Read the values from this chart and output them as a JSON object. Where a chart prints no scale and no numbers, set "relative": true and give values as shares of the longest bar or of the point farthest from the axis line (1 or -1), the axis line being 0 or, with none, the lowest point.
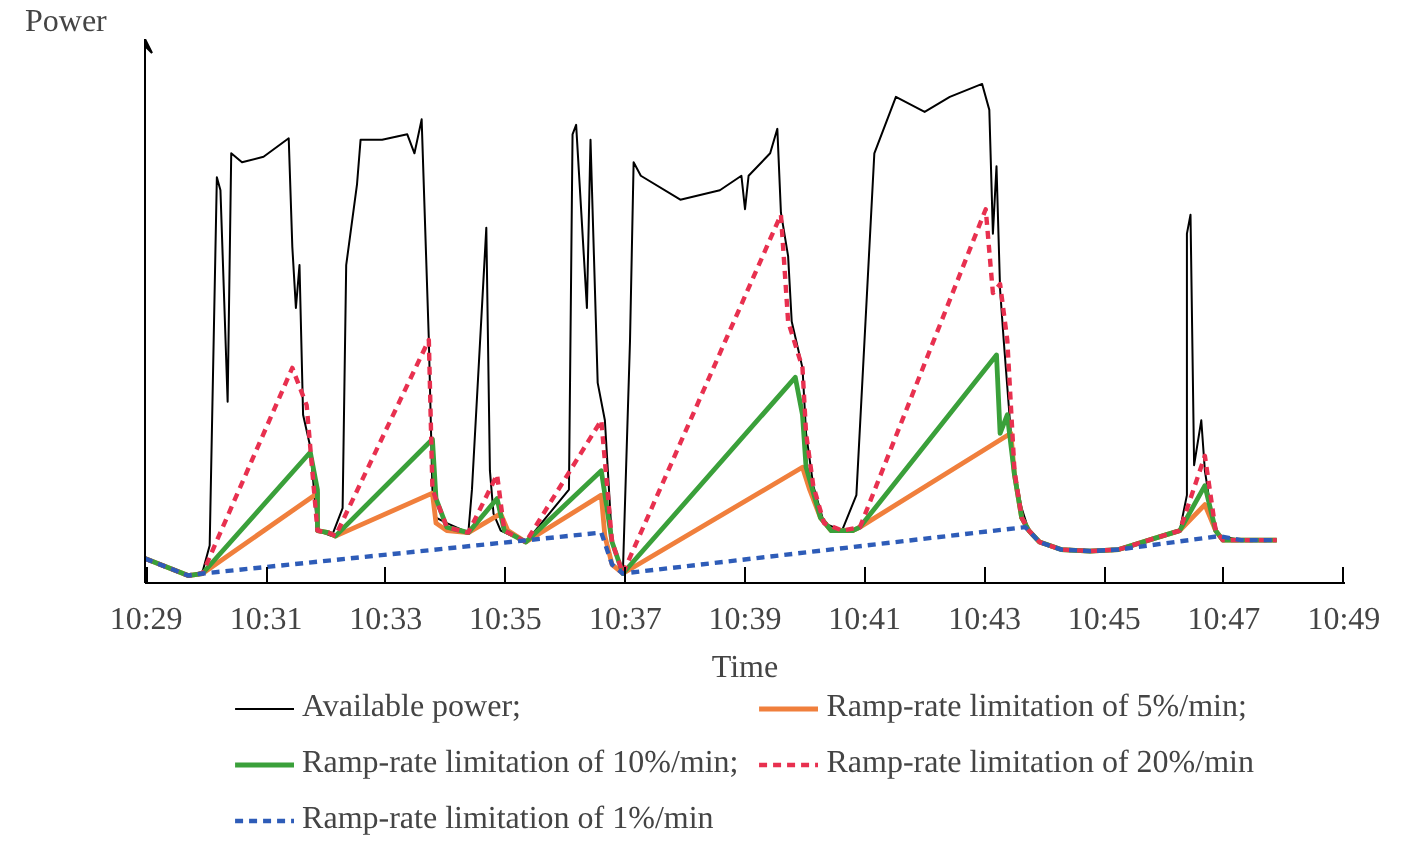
{
  "chart_data": {
    "type": "line",
    "relative": true,
    "ylabel": "Power",
    "xlabel": "Time",
    "legend": "bottom",
    "xlim": [
      10.483,
      10.817
    ],
    "xticks": [
      {
        "value": 10.4833,
        "label": "10:29"
      },
      {
        "value": 10.5167,
        "label": "10:31"
      },
      {
        "value": 10.55,
        "label": "10:33"
      },
      {
        "value": 10.5833,
        "label": "10:35"
      },
      {
        "value": 10.6167,
        "label": "10:37"
      },
      {
        "value": 10.65,
        "label": "10:39"
      },
      {
        "value": 10.6833,
        "label": "10:41"
      },
      {
        "value": 10.7167,
        "label": "10:43"
      },
      {
        "value": 10.75,
        "label": "10:45"
      },
      {
        "value": 10.7833,
        "label": "10:47"
      },
      {
        "value": 10.8167,
        "label": "10:49"
      }
    ],
    "series": [
      {
        "name": "Available power;",
        "color": "#000000",
        "line_style": "solid",
        "x": [
          10.483,
          10.495,
          10.499,
          10.501,
          10.503,
          10.504,
          10.506,
          10.507,
          10.51,
          10.516,
          10.523,
          10.524,
          10.525,
          10.526,
          10.527,
          10.529,
          10.531,
          10.535,
          10.538,
          10.539,
          10.542,
          10.543,
          10.549,
          10.556,
          10.558,
          10.56,
          10.562,
          10.563,
          10.564,
          10.567,
          10.573,
          10.574,
          10.578,
          10.579,
          10.58,
          10.582,
          10.589,
          10.601,
          10.602,
          10.603,
          10.606,
          10.607,
          10.609,
          10.611,
          10.613,
          10.616,
          10.618,
          10.619,
          10.621,
          10.632,
          10.643,
          10.649,
          10.65,
          10.651,
          10.657,
          10.659,
          10.66,
          10.662,
          10.663,
          10.666,
          10.667,
          10.669,
          10.672,
          10.677,
          10.681,
          10.686,
          10.692,
          10.7,
          10.707,
          10.716,
          10.718,
          10.719,
          10.72,
          10.721,
          10.722,
          10.724,
          10.725,
          10.727,
          10.729,
          10.732,
          10.738,
          10.746,
          10.754,
          10.766,
          10.771,
          10.773,
          10.773,
          10.774,
          10.775,
          10.777,
          10.778,
          10.78,
          10.782,
          10.788,
          10.798
        ],
        "values": [
          0.049,
          0.015,
          0.022,
          0.075,
          0.813,
          0.787,
          0.363,
          0.861,
          0.843,
          0.854,
          0.891,
          0.674,
          0.551,
          0.637,
          0.337,
          0.273,
          0.105,
          0.094,
          0.15,
          0.637,
          0.798,
          0.888,
          0.888,
          0.899,
          0.861,
          0.929,
          0.487,
          0.187,
          0.131,
          0.12,
          0.101,
          0.187,
          0.712,
          0.225,
          0.139,
          0.105,
          0.082,
          0.187,
          0.899,
          0.918,
          0.551,
          0.888,
          0.401,
          0.326,
          0.082,
          0.019,
          0.487,
          0.843,
          0.816,
          0.768,
          0.787,
          0.816,
          0.749,
          0.816,
          0.861,
          0.91,
          0.742,
          0.655,
          0.524,
          0.431,
          0.3,
          0.195,
          0.12,
          0.105,
          0.176,
          0.861,
          0.974,
          0.944,
          0.974,
          1.0,
          0.948,
          0.7,
          0.835,
          0.588,
          0.487,
          0.3,
          0.225,
          0.15,
          0.105,
          0.082,
          0.067,
          0.064,
          0.067,
          0.094,
          0.105,
          0.176,
          0.7,
          0.738,
          0.236,
          0.326,
          0.225,
          0.131,
          0.094,
          0.086,
          0.086
        ]
      },
      {
        "name": "Ramp-rate limitation of 5%/min;",
        "color": "#f07f3c",
        "line_style": "solid",
        "x": [
          10.483,
          10.495,
          10.499,
          10.531,
          10.531,
          10.534,
          10.536,
          10.563,
          10.564,
          10.567,
          10.573,
          10.582,
          10.584,
          10.589,
          10.61,
          10.611,
          10.613,
          10.616,
          10.666,
          10.668,
          10.671,
          10.674,
          10.68,
          10.682,
          10.724,
          10.725,
          10.727,
          10.729,
          10.732,
          10.738,
          10.746,
          10.754,
          10.766,
          10.771,
          10.778,
          10.781,
          10.783,
          10.798
        ],
        "values": [
          0.049,
          0.015,
          0.019,
          0.18,
          0.105,
          0.101,
          0.094,
          0.18,
          0.12,
          0.105,
          0.101,
          0.139,
          0.105,
          0.082,
          0.176,
          0.094,
          0.037,
          0.019,
          0.232,
          0.187,
          0.131,
          0.105,
          0.105,
          0.112,
          0.3,
          0.217,
          0.131,
          0.105,
          0.082,
          0.067,
          0.064,
          0.067,
          0.094,
          0.105,
          0.157,
          0.105,
          0.086,
          0.086
        ]
      },
      {
        "name": "Ramp-rate limitation of 10%/min;",
        "color": "#3aa03a",
        "line_style": "solid",
        "x": [
          10.483,
          10.495,
          10.499,
          10.529,
          10.531,
          10.531,
          10.534,
          10.536,
          10.563,
          10.564,
          10.567,
          10.573,
          10.581,
          10.583,
          10.589,
          10.61,
          10.613,
          10.616,
          10.664,
          10.666,
          10.667,
          10.671,
          10.674,
          10.68,
          10.682,
          10.72,
          10.721,
          10.723,
          10.725,
          10.727,
          10.729,
          10.732,
          10.738,
          10.746,
          10.754,
          10.766,
          10.771,
          10.778,
          10.781,
          10.783,
          10.798
        ],
        "values": [
          0.049,
          0.015,
          0.019,
          0.262,
          0.187,
          0.105,
          0.101,
          0.094,
          0.288,
          0.169,
          0.112,
          0.101,
          0.169,
          0.105,
          0.082,
          0.225,
          0.082,
          0.019,
          0.412,
          0.337,
          0.232,
          0.131,
          0.105,
          0.105,
          0.112,
          0.457,
          0.3,
          0.337,
          0.217,
          0.131,
          0.105,
          0.082,
          0.067,
          0.064,
          0.067,
          0.094,
          0.105,
          0.195,
          0.105,
          0.086,
          0.086
        ]
      },
      {
        "name": "Ramp-rate limitation of 20%/min",
        "color": "#e8304f",
        "line_style": "dashed",
        "x": [
          10.483,
          10.495,
          10.499,
          10.524,
          10.528,
          10.531,
          10.534,
          10.536,
          10.562,
          10.563,
          10.567,
          10.573,
          10.581,
          10.583,
          10.589,
          10.61,
          10.613,
          10.616,
          10.66,
          10.662,
          10.666,
          10.667,
          10.669,
          10.672,
          10.677,
          10.682,
          10.717,
          10.719,
          10.721,
          10.723,
          10.725,
          10.727,
          10.729,
          10.732,
          10.738,
          10.746,
          10.754,
          10.766,
          10.771,
          10.778,
          10.781,
          10.783,
          10.798
        ],
        "values": [
          0.049,
          0.015,
          0.019,
          0.431,
          0.356,
          0.105,
          0.101,
          0.094,
          0.487,
          0.187,
          0.112,
          0.101,
          0.217,
          0.105,
          0.082,
          0.326,
          0.082,
          0.019,
          0.738,
          0.524,
          0.431,
          0.3,
          0.195,
          0.12,
          0.105,
          0.112,
          0.749,
          0.581,
          0.599,
          0.487,
          0.225,
          0.131,
          0.105,
          0.082,
          0.067,
          0.064,
          0.067,
          0.094,
          0.105,
          0.255,
          0.105,
          0.086,
          0.086
        ]
      },
      {
        "name": "Ramp-rate limitation of 1%/min",
        "color": "#2e5cb8",
        "line_style": "dashed",
        "x": [
          10.483,
          10.495,
          10.499,
          10.61,
          10.613,
          10.616,
          10.728,
          10.732,
          10.738,
          10.746,
          10.754,
          10.782,
          10.788,
          10.798
        ],
        "values": [
          0.049,
          0.015,
          0.019,
          0.101,
          0.037,
          0.019,
          0.112,
          0.082,
          0.067,
          0.064,
          0.067,
          0.094,
          0.086,
          0.086
        ]
      }
    ]
  }
}
